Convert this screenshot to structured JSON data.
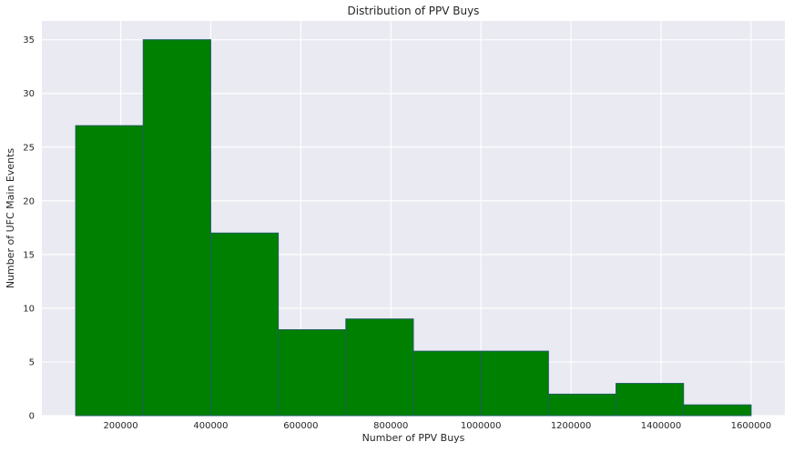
{
  "chart_data": {
    "type": "histogram",
    "title": "Distribution of PPV Buys",
    "xlabel": "Number of PPV Buys",
    "ylabel": "Number of UFC Main Events",
    "bin_edges": [
      100000,
      250000,
      400000,
      550000,
      700000,
      850000,
      1000000,
      1150000,
      1300000,
      1450000,
      1600000
    ],
    "counts": [
      27,
      35,
      17,
      8,
      9,
      6,
      6,
      2,
      3,
      1
    ],
    "xlim": [
      25000,
      1675000
    ],
    "ylim": [
      0,
      36.75
    ],
    "xticks": [
      200000,
      400000,
      600000,
      800000,
      1000000,
      1200000,
      1400000,
      1600000
    ],
    "yticks": [
      0,
      5,
      10,
      15,
      20,
      25,
      30,
      35
    ],
    "bar_color": "#008000",
    "edge_color": "#1f5f5f",
    "background_color": "#eaeaf2",
    "grid": true,
    "grid_color": "#ffffff"
  }
}
